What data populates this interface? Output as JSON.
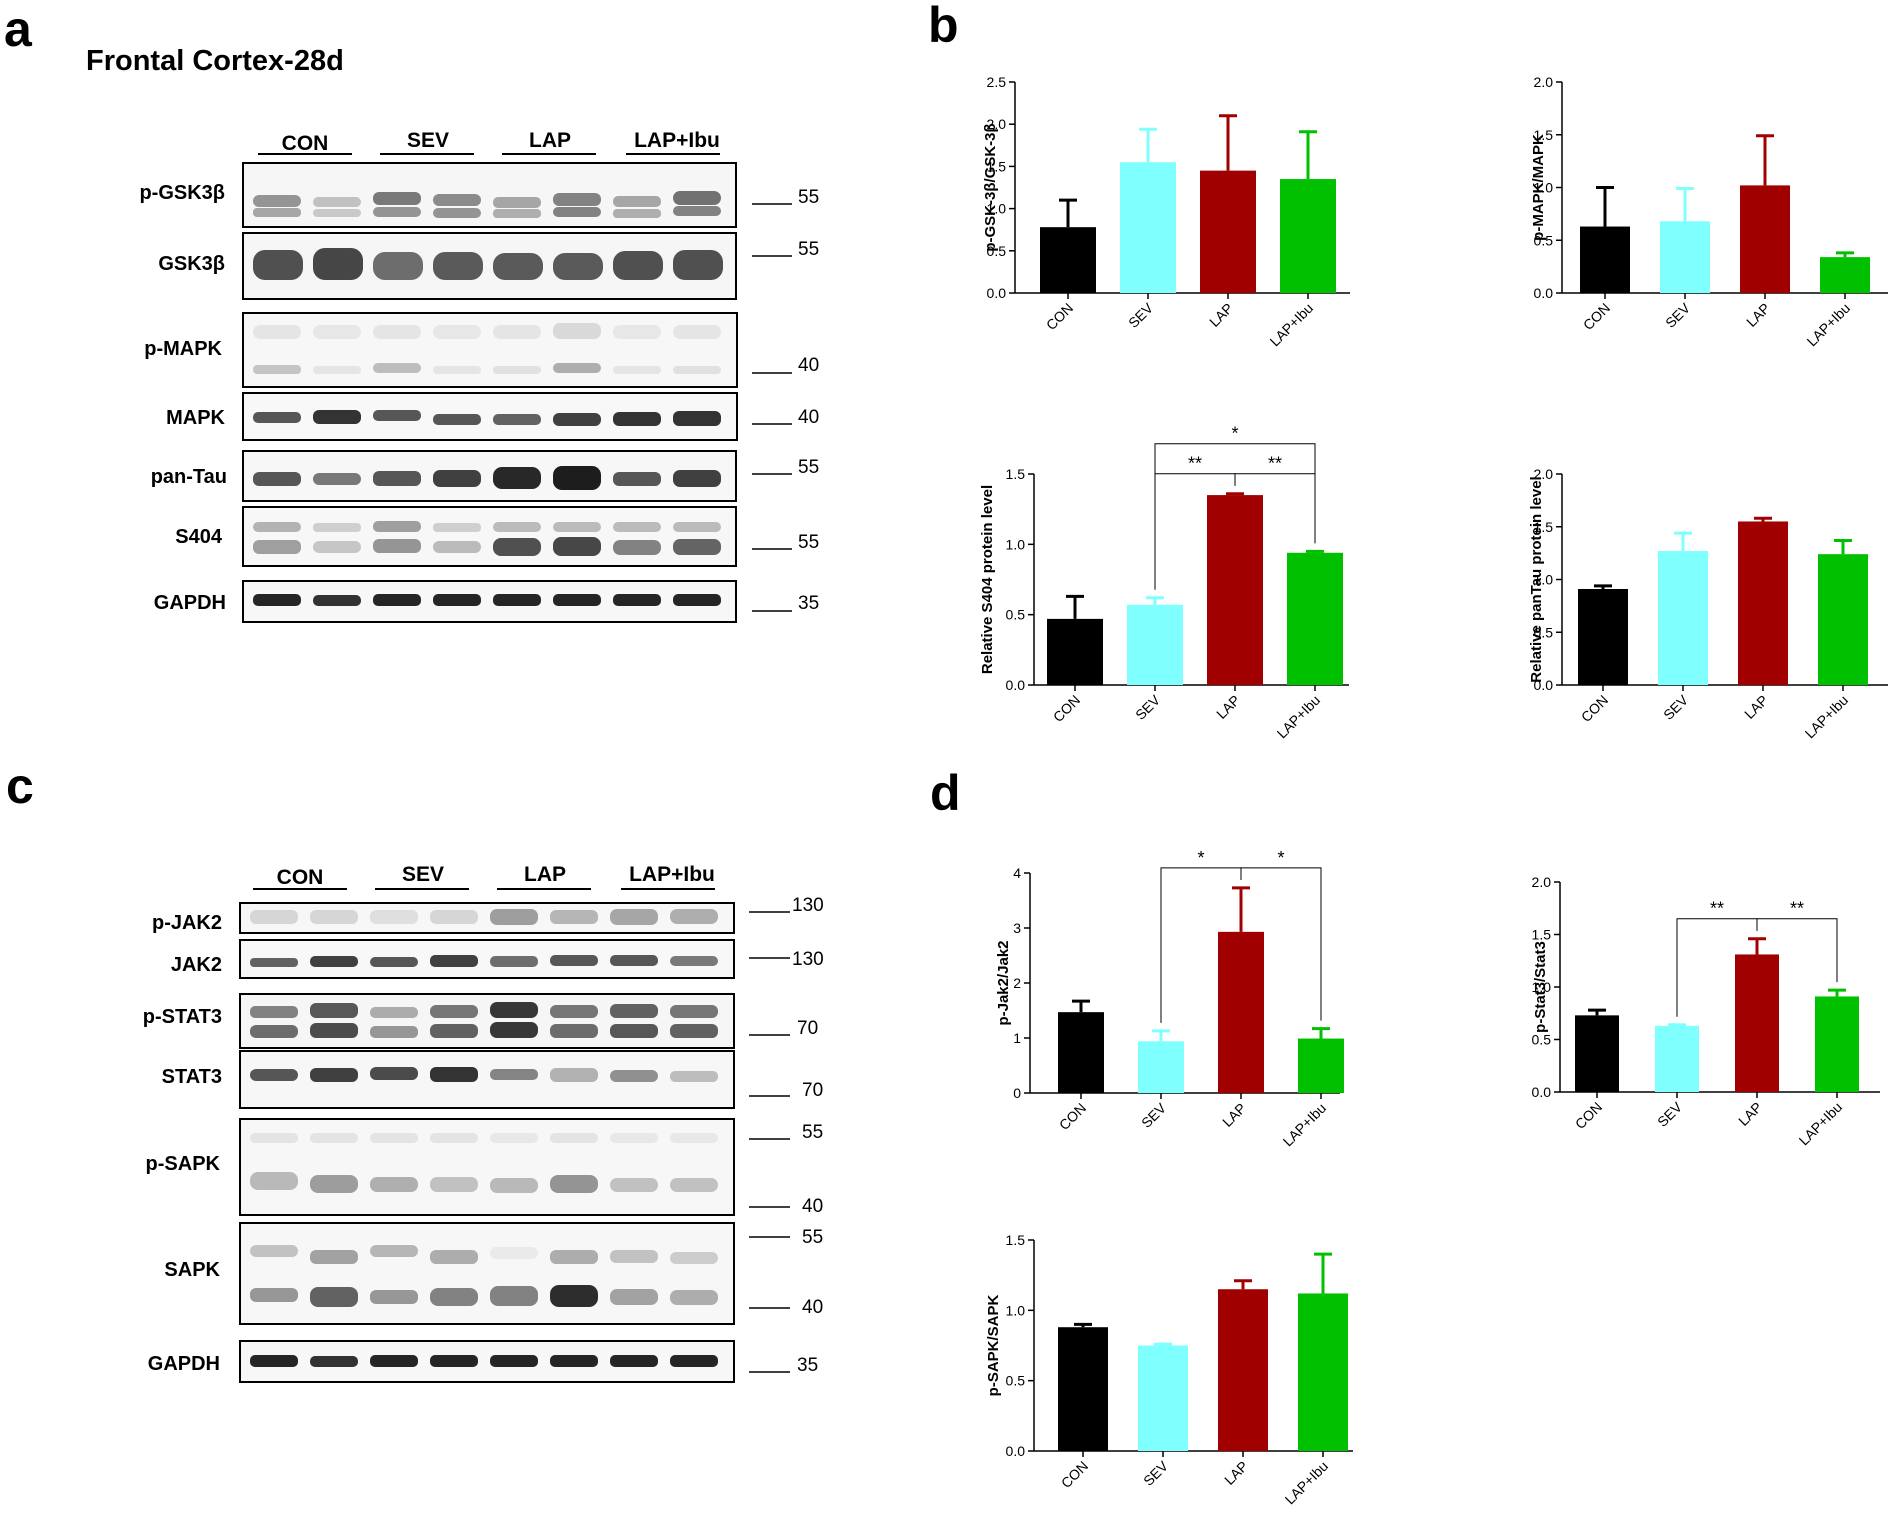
{
  "panels": {
    "a": "a",
    "b": "b",
    "c": "c",
    "d": "d"
  },
  "blot_a": {
    "title": "Frontal Cortex-28d",
    "groups": [
      "CON",
      "SEV",
      "LAP",
      "LAP+Ibu"
    ],
    "rows": [
      {
        "label": "p-GSK3β",
        "markers": [
          "55"
        ]
      },
      {
        "label": "GSK3β",
        "markers": [
          "55"
        ]
      },
      {
        "label": "p-MAPK",
        "markers": [
          "40"
        ]
      },
      {
        "label": "MAPK",
        "markers": [
          "40"
        ]
      },
      {
        "label": "pan-Tau",
        "markers": [
          "55"
        ]
      },
      {
        "label": "S404",
        "markers": [
          "55"
        ]
      },
      {
        "label": "GAPDH",
        "markers": [
          "35"
        ]
      }
    ]
  },
  "blot_c": {
    "groups": [
      "CON",
      "SEV",
      "LAP",
      "LAP+Ibu"
    ],
    "rows": [
      {
        "label": "p-JAK2",
        "markers": [
          "130"
        ]
      },
      {
        "label": "JAK2",
        "markers": [
          "130"
        ]
      },
      {
        "label": "p-STAT3",
        "markers": [
          "70"
        ]
      },
      {
        "label": "STAT3",
        "markers": [
          "70"
        ]
      },
      {
        "label": "p-SAPK",
        "markers": [
          "55",
          "40"
        ]
      },
      {
        "label": "SAPK",
        "markers": [
          "55",
          "40"
        ]
      },
      {
        "label": "GAPDH",
        "markers": [
          "35"
        ]
      }
    ]
  },
  "chart_data": [
    {
      "id": "b1",
      "type": "bar",
      "categories": [
        "CON",
        "SEV",
        "LAP",
        "LAP+Ibu"
      ],
      "values": [
        0.78,
        1.55,
        1.45,
        1.35
      ],
      "errors": [
        0.32,
        0.39,
        0.65,
        0.56
      ],
      "ylabel": "p-GSK-3β/GSK-3β",
      "ylim": [
        0,
        2.5
      ],
      "yticks": [
        "0.0",
        "0.5",
        "1.0",
        "1.5",
        "2.0",
        "2.5"
      ],
      "colors": [
        "#000000",
        "#80FFFF",
        "#A00000",
        "#00C000"
      ],
      "sig": []
    },
    {
      "id": "b2",
      "type": "bar",
      "categories": [
        "CON",
        "SEV",
        "LAP",
        "LAP+Ibu"
      ],
      "values": [
        0.63,
        0.68,
        1.02,
        0.34
      ],
      "errors": [
        0.37,
        0.31,
        0.47,
        0.04
      ],
      "ylabel": "p-MAPK/MAPK",
      "ylim": [
        0,
        2.0
      ],
      "yticks": [
        "0.0",
        "0.5",
        "1.0",
        "1.5",
        "2.0"
      ],
      "colors": [
        "#000000",
        "#80FFFF",
        "#A00000",
        "#00C000"
      ],
      "sig": []
    },
    {
      "id": "b3",
      "type": "bar",
      "categories": [
        "CON",
        "SEV",
        "LAP",
        "LAP+Ibu"
      ],
      "values": [
        0.47,
        0.57,
        1.35,
        0.94
      ],
      "errors": [
        0.16,
        0.05,
        0.01,
        0.01
      ],
      "ylabel": "Relative S404 protein level",
      "ylim": [
        0,
        1.5
      ],
      "yticks": [
        "0.0",
        "0.5",
        "1.0",
        "1.5"
      ],
      "colors": [
        "#000000",
        "#80FFFF",
        "#A00000",
        "#00C000"
      ],
      "sig": [
        {
          "from": 1,
          "to": 2,
          "label": "**",
          "level": 1
        },
        {
          "from": 2,
          "to": 3,
          "label": "**",
          "level": 1
        },
        {
          "from": 1,
          "to": 3,
          "label": "*",
          "level": 2
        }
      ]
    },
    {
      "id": "b4",
      "type": "bar",
      "categories": [
        "CON",
        "SEV",
        "LAP",
        "LAP+Ibu"
      ],
      "values": [
        0.91,
        1.27,
        1.55,
        1.24
      ],
      "errors": [
        0.03,
        0.17,
        0.03,
        0.13
      ],
      "ylabel": "Relative panTau protein level",
      "ylim": [
        0,
        2.0
      ],
      "yticks": [
        "0.0",
        "0.5",
        "1.0",
        "1.5",
        "2.0"
      ],
      "colors": [
        "#000000",
        "#80FFFF",
        "#A00000",
        "#00C000"
      ],
      "sig": []
    },
    {
      "id": "d1",
      "type": "bar",
      "categories": [
        "CON",
        "SEV",
        "LAP",
        "LAP+Ibu"
      ],
      "values": [
        1.47,
        0.94,
        2.93,
        0.99
      ],
      "errors": [
        0.2,
        0.19,
        0.8,
        0.18
      ],
      "ylabel": "p-Jak2/Jak2",
      "ylim": [
        0,
        4
      ],
      "yticks": [
        "0",
        "1",
        "2",
        "3",
        "4"
      ],
      "colors": [
        "#000000",
        "#80FFFF",
        "#A00000",
        "#00C000"
      ],
      "sig": [
        {
          "from": 1,
          "to": 2,
          "label": "*",
          "level": 1
        },
        {
          "from": 2,
          "to": 3,
          "label": "*",
          "level": 1
        }
      ]
    },
    {
      "id": "d2",
      "type": "bar",
      "categories": [
        "CON",
        "SEV",
        "LAP",
        "LAP+Ibu"
      ],
      "values": [
        0.73,
        0.63,
        1.31,
        0.91
      ],
      "errors": [
        0.05,
        0.01,
        0.15,
        0.06
      ],
      "ylabel": "p-Stat3/Stat3",
      "ylim": [
        0,
        2.0
      ],
      "yticks": [
        "0.0",
        "0.5",
        "1.0",
        "1.5",
        "2.0"
      ],
      "colors": [
        "#000000",
        "#80FFFF",
        "#A00000",
        "#00C000"
      ],
      "sig": [
        {
          "from": 1,
          "to": 2,
          "label": "**",
          "level": 1
        },
        {
          "from": 2,
          "to": 3,
          "label": "**",
          "level": 1
        }
      ]
    },
    {
      "id": "d3",
      "type": "bar",
      "categories": [
        "CON",
        "SEV",
        "LAP",
        "LAP+Ibu"
      ],
      "values": [
        0.88,
        0.75,
        1.15,
        1.12
      ],
      "errors": [
        0.02,
        0.01,
        0.06,
        0.28
      ],
      "ylabel": "p-SAPK/SAPK",
      "ylim": [
        0,
        1.5
      ],
      "yticks": [
        "0.0",
        "0.5",
        "1.0",
        "1.5"
      ],
      "colors": [
        "#000000",
        "#80FFFF",
        "#A00000",
        "#00C000"
      ],
      "sig": []
    }
  ]
}
